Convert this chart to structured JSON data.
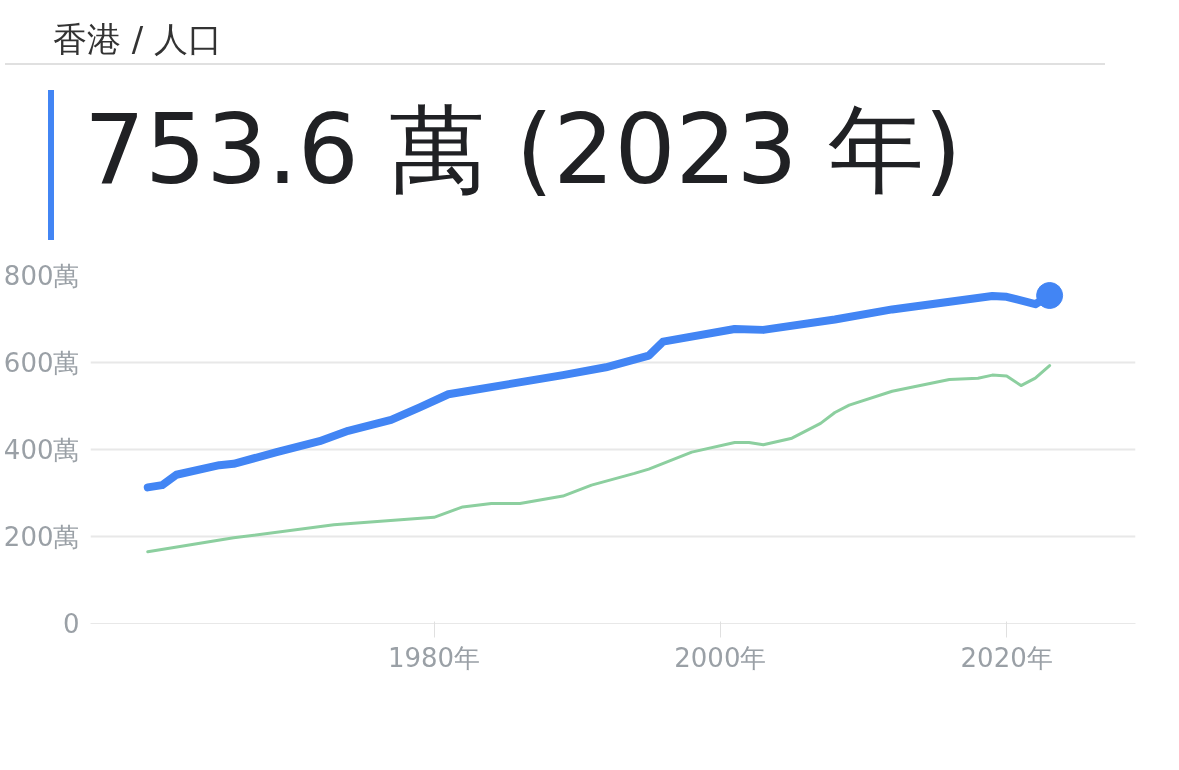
{
  "chart_data": {
    "type": "line",
    "title": "香港 / 人口",
    "subtitle": "753.6 萬 (2023 年)",
    "series": [
      {
        "color": "#4285f4",
        "x": [
          1960,
          1961,
          1962,
          1965,
          1966,
          1969,
          1972,
          1974,
          1977,
          1979,
          1981,
          1989,
          1992,
          1995,
          1996,
          2001,
          2003,
          2008,
          2012,
          2019,
          2020,
          2022,
          2023
        ],
        "values": [
          313,
          318,
          342,
          364,
          367,
          394,
          419,
          443,
          468,
          497,
          527,
          571,
          589,
          616,
          648,
          677,
          675,
          699,
          722,
          753,
          751,
          734,
          754
        ]
      },
      {
        "color": "#8ccf9f",
        "x": [
          1960,
          1966,
          1973,
          1980,
          1982,
          1984,
          1986,
          1989,
          1991,
          1994,
          1995,
          1998,
          2001,
          2002,
          2003,
          2005,
          2007,
          2008,
          2009,
          2012,
          2016,
          2018,
          2019,
          2020,
          2021,
          2022,
          2023
        ],
        "values": [
          165,
          197,
          227,
          244,
          268,
          276,
          276,
          293,
          318,
          345,
          355,
          394,
          416,
          416,
          411,
          426,
          460,
          485,
          502,
          534,
          561,
          564,
          571,
          569,
          547,
          564,
          593
        ]
      },
      {
        "type": "scatter",
        "color": "#4285f4",
        "x": [
          2023
        ],
        "values": [
          754
        ]
      }
    ],
    "xlim": [
      1956,
      2029
    ],
    "ylim": [
      0,
      800
    ],
    "xticks": [
      {
        "value": 1980,
        "label": "1980年"
      },
      {
        "value": 2000,
        "label": "2000年"
      },
      {
        "value": 2020,
        "label": "2020年"
      }
    ],
    "yticks": [
      0,
      {
        "value": 200,
        "label": "200萬"
      },
      {
        "value": 400,
        "label": "400萬"
      },
      {
        "value": 600,
        "label": "600萬"
      },
      {
        "value": 800,
        "label": "800萬"
      }
    ],
    "grid": "y"
  }
}
